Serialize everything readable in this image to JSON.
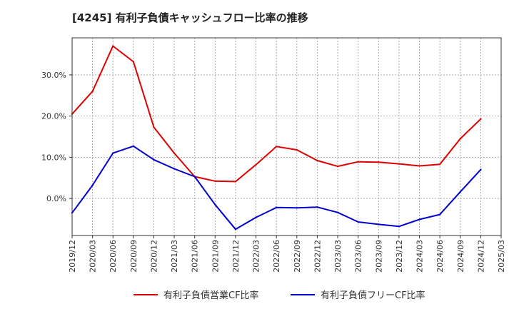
{
  "title": "[4245]  有利子負債キャッシュフロー比率の推移",
  "colors": {
    "grid": "#aaaaaa",
    "axis": "#333333",
    "text": "#333333"
  },
  "chart_data": {
    "type": "line",
    "x": [
      "2019/12",
      "2020/03",
      "2020/06",
      "2020/09",
      "2020/12",
      "2021/03",
      "2021/06",
      "2021/09",
      "2021/12",
      "2022/03",
      "2022/06",
      "2022/09",
      "2022/12",
      "2023/03",
      "2023/06",
      "2023/09",
      "2023/12",
      "2024/03",
      "2024/06",
      "2024/09",
      "2024/12",
      "2025/03"
    ],
    "x_ticks": [
      "2019/12",
      "2020/03",
      "2020/06",
      "2020/09",
      "2020/12",
      "2021/03",
      "2021/06",
      "2021/09",
      "2021/12",
      "2022/03",
      "2022/06",
      "2022/09",
      "2022/12",
      "2023/03",
      "2023/06",
      "2023/09",
      "2023/12",
      "2024/03",
      "2024/06",
      "2024/09",
      "2024/12",
      "2025/03"
    ],
    "y_ticks": [
      0,
      10,
      20,
      30
    ],
    "y_tick_labels": [
      "0.0%",
      "10.0%",
      "20.0%",
      "30.0%"
    ],
    "ylim": [
      -9,
      39
    ],
    "grid": true,
    "legend_position": "bottom",
    "series": [
      {
        "name": "有利子負債営業CF比率",
        "color": "#dd0000",
        "values": [
          20.5,
          26,
          37,
          33.2,
          17.3,
          11,
          5.3,
          4.2,
          4.1,
          8.2,
          12.6,
          11.8,
          9.2,
          7.8,
          8.9,
          8.8,
          8.4,
          7.9,
          8.3,
          14.5,
          19.3,
          null
        ]
      },
      {
        "name": "有利子負債フリーCF比率",
        "color": "#0000cc",
        "values": [
          -3.5,
          3.2,
          11,
          12.7,
          9.4,
          7.2,
          5.3,
          -1.5,
          -7.5,
          -4.6,
          -2.2,
          -2.3,
          -2.1,
          -3.4,
          -5.7,
          -6.3,
          -6.8,
          -5.1,
          -3.9,
          1.6,
          7,
          null
        ]
      }
    ]
  }
}
